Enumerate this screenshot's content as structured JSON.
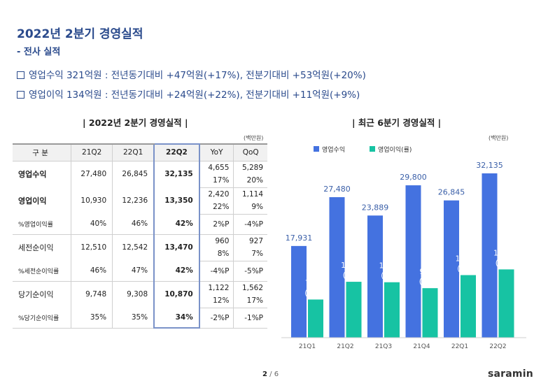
{
  "title": "2022년 2분기 경영실적",
  "subtitle": "- 전사 실적",
  "bullets": [
    "영업수익 321억원 : 전년동기대비 +47억원(+17%), 전분기대비 +53억원(+20%)",
    "영업이익 134억원 : 전년동기대비 +24억원(+22%), 전분기대비 +11억원(+9%)"
  ],
  "table_section_title": "| 2022년 2분기 경영실적 |",
  "chart_section_title": "| 최근 6분기 경영실적 |",
  "unit_label": "(백만원)",
  "table": {
    "headers": [
      "구 분",
      "21Q2",
      "22Q1",
      "22Q2",
      "YoY",
      "QoQ"
    ],
    "rows": [
      {
        "label": "영업수익",
        "v21q2": "27,480",
        "v22q1": "26,845",
        "v22q2": "32,135",
        "yoy": "4,655",
        "qoq": "5,289",
        "yoy_pct": "17%",
        "qoq_pct": "20%"
      },
      {
        "label": "영업이익",
        "v21q2": "10,930",
        "v22q1": "12,236",
        "v22q2": "13,350",
        "yoy": "2,420",
        "qoq": "1,114",
        "yoy_pct": "22%",
        "qoq_pct": "9%"
      },
      {
        "label": "%영업이익률",
        "v21q2": "40%",
        "v22q1": "46%",
        "v22q2": "42%",
        "yoy": "2%P",
        "qoq": "-4%P"
      },
      {
        "label": "세전순이익",
        "v21q2": "12,510",
        "v22q1": "12,542",
        "v22q2": "13,470",
        "yoy": "960",
        "qoq": "927",
        "yoy_pct": "8%",
        "qoq_pct": "7%"
      },
      {
        "label": "%세전순이익률",
        "v21q2": "46%",
        "v22q1": "47%",
        "v22q2": "42%",
        "yoy": "-4%P",
        "qoq": "-5%P"
      },
      {
        "label": "당기순이익",
        "v21q2": "9,748",
        "v22q1": "9,308",
        "v22q2": "10,870",
        "yoy": "1,122",
        "qoq": "1,562",
        "yoy_pct": "12%",
        "qoq_pct": "17%"
      },
      {
        "label": "%당기순이익률",
        "v21q2": "35%",
        "v22q1": "35%",
        "v22q2": "34%",
        "yoy": "-2%P",
        "qoq": "-1%P"
      }
    ]
  },
  "legend": {
    "revenue": "영업수익",
    "profit": "영업이익(률)"
  },
  "colors": {
    "revenue": "#4472e0",
    "profit": "#17c3a3",
    "label_revenue": "#3a5fa8",
    "label_profit": "#ffffff"
  },
  "chart_data": {
    "type": "bar",
    "categories": [
      "21Q1",
      "21Q2",
      "21Q3",
      "21Q4",
      "22Q1",
      "22Q2"
    ],
    "series": [
      {
        "name": "영업수익",
        "values": [
          17931,
          27480,
          23889,
          29800,
          26845,
          32135
        ]
      },
      {
        "name": "영업이익(률)",
        "values": [
          7461,
          10930,
          10840,
          9684,
          12236,
          13350
        ],
        "margins": [
          "(42%)",
          "(40%)",
          "(45%)",
          "(32%)",
          "(46%)",
          "(42%)"
        ]
      }
    ],
    "value_labels": {
      "revenue": [
        "17,931",
        "27,480",
        "23,889",
        "29,800",
        "26,845",
        "32,135"
      ],
      "profit": [
        "7,461",
        "10,930",
        "10,840",
        "9,684",
        "12,236",
        "13,350"
      ]
    }
  },
  "page": {
    "current": "2",
    "total": "/ 6"
  },
  "logo": "saramin"
}
